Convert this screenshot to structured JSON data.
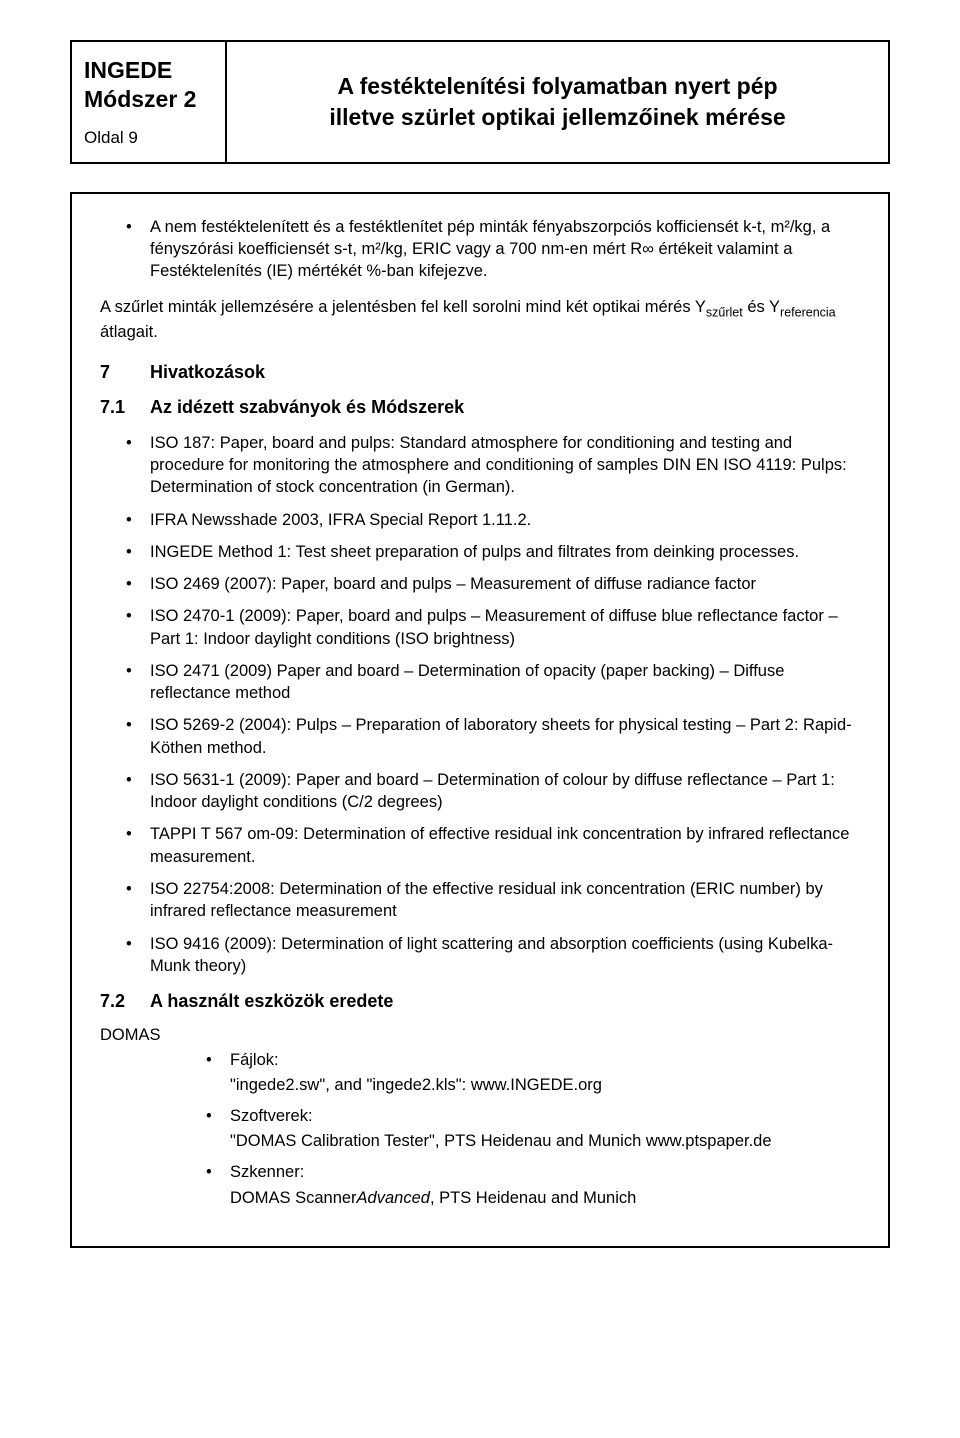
{
  "header": {
    "org": "INGEDE",
    "method": "Módszer 2",
    "page_label": "Oldal 9",
    "title_line1": "A festéktelenítési folyamatban nyert pép",
    "title_line2": "illetve szürlet optikai jellemzőinek mérése"
  },
  "top_bullets": [
    "A nem festéktelenített és a festéktlenítet pép minták fényabszorpciós kofficiensét k-t, m²/kg, a fényszórási koefficiensét s-t, m²/kg, ERIC vagy a 700 nm-en mért R∞ értékeit valamint a Festéktelenítés (IE) mértékét %-ban kifejezve."
  ],
  "para_filtrate": {
    "before": "A szűrlet minták jellemzésére a jelentésben fel kell sorolni mind két optikai mérés Y",
    "sub1": "szűrlet",
    "mid": " és Y",
    "sub2": "referencia",
    "after": " átlagait."
  },
  "sec7": {
    "num": "7",
    "title": "Hivatkozások"
  },
  "sec71": {
    "num": "7.1",
    "title": "Az idézett szabványok és Módszerek"
  },
  "refs": [
    "ISO 187: Paper, board and pulps: Standard atmosphere for conditioning and testing and procedure for monitoring the atmosphere and conditioning of samples DIN EN ISO 4119: Pulps: Determination of stock concentration (in German).",
    "IFRA Newsshade 2003, IFRA Special Report 1.11.2.",
    "INGEDE Method 1: Test sheet preparation of pulps and filtrates from deinking processes.",
    "ISO 2469 (2007): Paper, board and pulps – Measurement of diffuse radiance factor",
    "ISO 2470-1 (2009): Paper, board and pulps – Measurement of diffuse blue reflectance factor – Part 1: Indoor daylight conditions (ISO brightness)",
    "ISO 2471 (2009) Paper and board – Determination of opacity (paper backing) – Diffuse reflectance method",
    "ISO 5269-2 (2004): Pulps – Preparation of laboratory sheets for physical testing – Part 2: Rapid-Köthen method.",
    "ISO 5631-1 (2009): Paper and board – Determination of colour by diffuse reflectance – Part 1: Indoor daylight conditions (C/2 degrees)",
    "TAPPI T 567 om-09: Determination of effective residual ink concentration by infrared reflectance measurement.",
    "ISO 22754:2008: Determination of the effective residual ink concentration (ERIC number) by infrared reflectance measurement",
    "ISO 9416 (2009): Determination of light scattering and absorption coefficients (using Kubelka-Munk theory)"
  ],
  "sec72": {
    "num": "7.2",
    "title": "A használt eszközök eredete"
  },
  "domas": {
    "label": "DOMAS",
    "files_label": "Fájlok:",
    "files_value": "\"ingede2.sw\", and \"ingede2.kls\": www.INGEDE.org",
    "software_label": "Szoftverek:",
    "software_value": "\"DOMAS Calibration Tester\", PTS Heidenau and Munich www.ptspaper.de",
    "scanner_label": "Szkenner:",
    "scanner_value_prefix": "DOMAS Scanner",
    "scanner_value_italic": "Advanced",
    "scanner_value_suffix": ", PTS Heidenau and Munich"
  }
}
